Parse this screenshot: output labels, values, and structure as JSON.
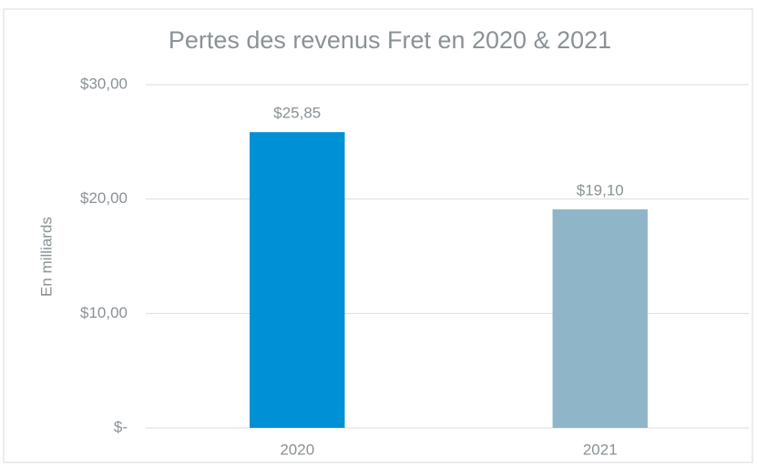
{
  "chart_data": {
    "type": "bar",
    "title": "Pertes des revenus Fret en 2020 & 2021",
    "ylabel": "En milliards",
    "categories": [
      "2020",
      "2021"
    ],
    "values": [
      25.85,
      19.1
    ],
    "value_labels": [
      "$25,85",
      "$19,10"
    ],
    "colors": [
      "#0090d6",
      "#8fb6c8"
    ],
    "ylim": [
      0,
      30
    ],
    "yticks": [
      {
        "value": 0,
        "label": "$-"
      },
      {
        "value": 10,
        "label": "$10,00"
      },
      {
        "value": 20,
        "label": "$20,00"
      },
      {
        "value": 30,
        "label": "$30,00"
      }
    ],
    "grid": true
  }
}
